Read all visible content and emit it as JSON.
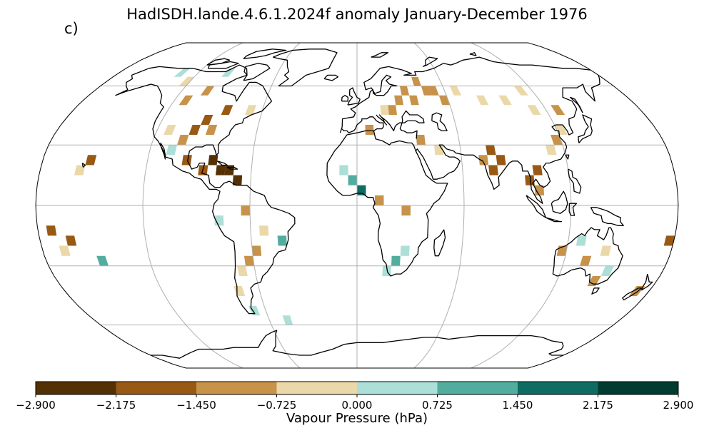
{
  "title": "HadISDH.lande.4.6.1.2024f anomaly January-December 1976",
  "panel_label": "c)",
  "colorbar": {
    "label": "Vapour Pressure (hPa)",
    "ticks": [
      "−2.900",
      "−2.175",
      "−1.450",
      "−0.725",
      "0.000",
      "0.725",
      "1.450",
      "2.175",
      "2.900"
    ],
    "bins": [
      {
        "from": -2.9,
        "to": -2.175,
        "color": "#543005"
      },
      {
        "from": -2.175,
        "to": -1.45,
        "color": "#985914"
      },
      {
        "from": -1.45,
        "to": -0.725,
        "color": "#c7924a"
      },
      {
        "from": -0.725,
        "to": 0.0,
        "color": "#ebd8a9"
      },
      {
        "from": 0.0,
        "to": 0.725,
        "color": "#acdfd8"
      },
      {
        "from": 0.725,
        "to": 1.45,
        "color": "#53ad9f"
      },
      {
        "from": 1.45,
        "to": 2.175,
        "color": "#0e6c63"
      },
      {
        "from": 2.175,
        "to": 2.9,
        "color": "#003c30"
      }
    ]
  },
  "map": {
    "projection": "robinson",
    "gridlines": true,
    "grid_resolution_deg": 5,
    "anomaly_cells": [
      {
        "lon": 47.5,
        "lat": 57.5,
        "bin": 2
      },
      {
        "lon": 52.5,
        "lat": 57.5,
        "bin": 2
      },
      {
        "lon": 57.5,
        "lat": 52.5,
        "bin": 2
      },
      {
        "lon": 37.5,
        "lat": 52.5,
        "bin": 2
      },
      {
        "lon": 32.5,
        "lat": 57.5,
        "bin": 2
      },
      {
        "lon": 42.5,
        "lat": 62.5,
        "bin": 2
      },
      {
        "lon": 27.5,
        "lat": 52.5,
        "bin": 2
      },
      {
        "lon": 22.5,
        "lat": 47.5,
        "bin": 2
      },
      {
        "lon": 17.5,
        "lat": 47.5,
        "bin": 3
      },
      {
        "lon": 67.5,
        "lat": 57.5,
        "bin": 3
      },
      {
        "lon": 82.5,
        "lat": 52.5,
        "bin": 3
      },
      {
        "lon": 97.5,
        "lat": 52.5,
        "bin": 3
      },
      {
        "lon": 112.5,
        "lat": 47.5,
        "bin": 3
      },
      {
        "lon": 127.5,
        "lat": 47.5,
        "bin": 2
      },
      {
        "lon": 112.5,
        "lat": 57.5,
        "bin": 3
      },
      {
        "lon": 77.5,
        "lat": 27.5,
        "bin": 1
      },
      {
        "lon": 82.5,
        "lat": 22.5,
        "bin": 1
      },
      {
        "lon": 77.5,
        "lat": 17.5,
        "bin": 1
      },
      {
        "lon": 72.5,
        "lat": 22.5,
        "bin": 2
      },
      {
        "lon": 102.5,
        "lat": 17.5,
        "bin": 1
      },
      {
        "lon": 97.5,
        "lat": 12.5,
        "bin": 1
      },
      {
        "lon": 102.5,
        "lat": 7.5,
        "bin": 2
      },
      {
        "lon": 117.5,
        "lat": 32.5,
        "bin": 2
      },
      {
        "lon": 112.5,
        "lat": 27.5,
        "bin": 3
      },
      {
        "lon": 122.5,
        "lat": 37.5,
        "bin": 3
      },
      {
        "lon": 47.5,
        "lat": 27.5,
        "bin": 3
      },
      {
        "lon": 37.5,
        "lat": 32.5,
        "bin": 2
      },
      {
        "lon": 7.5,
        "lat": 37.5,
        "bin": 2
      },
      {
        "lon": 2.5,
        "lat": 7.5,
        "bin": 6
      },
      {
        "lon": -2.5,
        "lat": 12.5,
        "bin": 5
      },
      {
        "lon": -7.5,
        "lat": 17.5,
        "bin": 4
      },
      {
        "lon": 12.5,
        "lat": 2.5,
        "bin": 2
      },
      {
        "lon": 27.5,
        "lat": -2.5,
        "bin": 2
      },
      {
        "lon": 22.5,
        "lat": -27.5,
        "bin": 5
      },
      {
        "lon": 27.5,
        "lat": -22.5,
        "bin": 4
      },
      {
        "lon": 17.5,
        "lat": -32.5,
        "bin": 4
      },
      {
        "lon": -77.5,
        "lat": 17.5,
        "bin": 0
      },
      {
        "lon": -82.5,
        "lat": 22.5,
        "bin": 0
      },
      {
        "lon": -72.5,
        "lat": 17.5,
        "bin": 0
      },
      {
        "lon": -67.5,
        "lat": 12.5,
        "bin": 0
      },
      {
        "lon": -87.5,
        "lat": 17.5,
        "bin": 1
      },
      {
        "lon": -97.5,
        "lat": 22.5,
        "bin": 1
      },
      {
        "lon": -97.5,
        "lat": 37.5,
        "bin": 1
      },
      {
        "lon": -92.5,
        "lat": 42.5,
        "bin": 1
      },
      {
        "lon": -102.5,
        "lat": 32.5,
        "bin": 2
      },
      {
        "lon": -87.5,
        "lat": 37.5,
        "bin": 2
      },
      {
        "lon": -112.5,
        "lat": 37.5,
        "bin": 3
      },
      {
        "lon": -112.5,
        "lat": 52.5,
        "bin": 2
      },
      {
        "lon": -102.5,
        "lat": 57.5,
        "bin": 2
      },
      {
        "lon": -122.5,
        "lat": 62.5,
        "bin": 3
      },
      {
        "lon": -132.5,
        "lat": 67.5,
        "bin": 4
      },
      {
        "lon": -97.5,
        "lat": 67.5,
        "bin": 4
      },
      {
        "lon": -82.5,
        "lat": 47.5,
        "bin": 1
      },
      {
        "lon": -67.5,
        "lat": 47.5,
        "bin": 3
      },
      {
        "lon": -107.5,
        "lat": 27.5,
        "bin": 4
      },
      {
        "lon": -152.5,
        "lat": 22.5,
        "bin": 1
      },
      {
        "lon": -157.5,
        "lat": 17.5,
        "bin": 3
      },
      {
        "lon": -172.5,
        "lat": -12.5,
        "bin": 1
      },
      {
        "lon": -162.5,
        "lat": -17.5,
        "bin": 1
      },
      {
        "lon": -167.5,
        "lat": -22.5,
        "bin": 3
      },
      {
        "lon": -147.5,
        "lat": -27.5,
        "bin": 5
      },
      {
        "lon": -62.5,
        "lat": -2.5,
        "bin": 2
      },
      {
        "lon": -52.5,
        "lat": -12.5,
        "bin": 3
      },
      {
        "lon": -42.5,
        "lat": -17.5,
        "bin": 5
      },
      {
        "lon": -57.5,
        "lat": -22.5,
        "bin": 2
      },
      {
        "lon": -62.5,
        "lat": -27.5,
        "bin": 2
      },
      {
        "lon": -67.5,
        "lat": -32.5,
        "bin": 3
      },
      {
        "lon": -72.5,
        "lat": -42.5,
        "bin": 3
      },
      {
        "lon": -67.5,
        "lat": -52.5,
        "bin": 4
      },
      {
        "lon": -77.5,
        "lat": -7.5,
        "bin": 4
      },
      {
        "lon": -47.5,
        "lat": -57.5,
        "bin": 4
      },
      {
        "lon": 117.5,
        "lat": -22.5,
        "bin": 2
      },
      {
        "lon": 132.5,
        "lat": -27.5,
        "bin": 2
      },
      {
        "lon": 142.5,
        "lat": -22.5,
        "bin": 3
      },
      {
        "lon": 147.5,
        "lat": -32.5,
        "bin": 4
      },
      {
        "lon": 127.5,
        "lat": -17.5,
        "bin": 4
      },
      {
        "lon": 142.5,
        "lat": -37.5,
        "bin": 2
      },
      {
        "lon": 172.5,
        "lat": -42.5,
        "bin": 2
      },
      {
        "lon": 177.5,
        "lat": -17.5,
        "bin": 1
      }
    ]
  }
}
